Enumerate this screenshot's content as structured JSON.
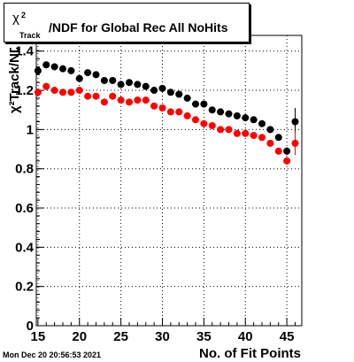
{
  "title": {
    "symbol": "χ",
    "sup": "2",
    "sub": "Track",
    "main": "/NDF for Global Rec All NoHits"
  },
  "date_stamp": "Mon Dec 20 20:56:53 2021",
  "chart_data": {
    "type": "scatter",
    "title": "χ²Track/NDF for Global Rec All NoHits",
    "xlabel": "No. of Fit Points",
    "ylabel": "χ²Track/ND",
    "xlim": [
      14.8,
      46.8
    ],
    "ylim": [
      0,
      1.48
    ],
    "xticks": [
      15,
      20,
      25,
      30,
      35,
      40,
      45
    ],
    "yticks": [
      0,
      0.2,
      0.4,
      0.6,
      0.8,
      1,
      1.2,
      1.4
    ],
    "ytick_labels": [
      "0",
      "0.2",
      "0.4",
      "0.6",
      "0.8",
      "1",
      "1.2",
      "1.4"
    ],
    "grid": true,
    "series": [
      {
        "color": "#000000",
        "x": [
          15,
          16,
          17,
          18,
          19,
          20,
          21,
          22,
          23,
          24,
          25,
          26,
          27,
          28,
          29,
          30,
          31,
          32,
          33,
          34,
          35,
          36,
          37,
          38,
          39,
          40,
          41,
          42,
          43,
          44,
          45,
          46
        ],
        "y": [
          1.3,
          1.33,
          1.32,
          1.31,
          1.3,
          1.26,
          1.29,
          1.28,
          1.25,
          1.25,
          1.23,
          1.24,
          1.23,
          1.22,
          1.2,
          1.21,
          1.19,
          1.18,
          1.16,
          1.13,
          1.13,
          1.1,
          1.09,
          1.08,
          1.07,
          1.06,
          1.05,
          1.03,
          1.0,
          0.96,
          0.89,
          1.04
        ],
        "yerr": [
          0.02,
          0.01,
          0.01,
          0.01,
          0.01,
          0.01,
          0.01,
          0.01,
          0.01,
          0.01,
          0.01,
          0.01,
          0.01,
          0.01,
          0.01,
          0.01,
          0.01,
          0.01,
          0.01,
          0.01,
          0.01,
          0.01,
          0.01,
          0.01,
          0.01,
          0.01,
          0.01,
          0.01,
          0.01,
          0.01,
          0.02,
          0.07
        ]
      },
      {
        "color": "#ff0000",
        "x": [
          15,
          16,
          17,
          18,
          19,
          20,
          21,
          22,
          23,
          24,
          25,
          26,
          27,
          28,
          29,
          30,
          31,
          32,
          33,
          34,
          35,
          36,
          37,
          38,
          39,
          40,
          41,
          42,
          43,
          44,
          45,
          46
        ],
        "y": [
          1.19,
          1.22,
          1.2,
          1.19,
          1.19,
          1.2,
          1.17,
          1.17,
          1.14,
          1.17,
          1.15,
          1.14,
          1.15,
          1.15,
          1.12,
          1.11,
          1.09,
          1.09,
          1.07,
          1.05,
          1.03,
          1.02,
          1.0,
          1.0,
          0.98,
          0.98,
          0.97,
          0.96,
          0.93,
          0.89,
          0.84,
          0.93
        ],
        "yerr": [
          0.02,
          0.01,
          0.01,
          0.01,
          0.01,
          0.01,
          0.01,
          0.01,
          0.01,
          0.01,
          0.01,
          0.01,
          0.01,
          0.01,
          0.01,
          0.01,
          0.01,
          0.01,
          0.01,
          0.01,
          0.01,
          0.01,
          0.01,
          0.01,
          0.01,
          0.01,
          0.01,
          0.01,
          0.01,
          0.01,
          0.02,
          0.06
        ]
      }
    ]
  }
}
